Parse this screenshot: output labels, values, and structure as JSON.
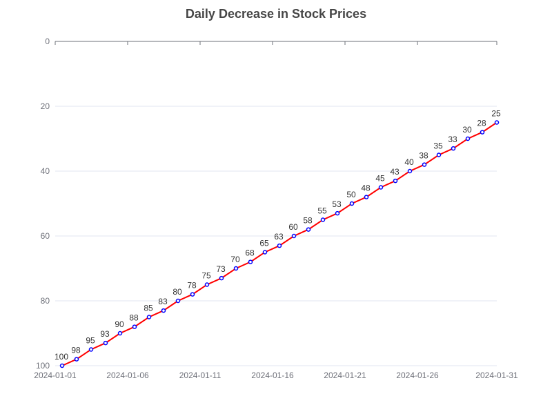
{
  "chart_data": {
    "type": "line",
    "title": "Daily Decrease in Stock Prices",
    "xlabel": "",
    "ylabel": "",
    "y_inverted": true,
    "ylim": [
      0,
      100
    ],
    "y_ticks": [
      0,
      20,
      40,
      60,
      80,
      100
    ],
    "x_tick_labels": [
      "2024-01-01",
      "2024-01-06",
      "2024-01-11",
      "2024-01-16",
      "2024-01-21",
      "2024-01-26",
      "2024-01-31"
    ],
    "grid": true,
    "colors": {
      "line": "#ff0000",
      "marker_stroke": "#0000ff",
      "marker_fill": "#ffffff",
      "grid": "#e0e6f1",
      "axis": "#6e7079"
    },
    "x": [
      "2024-01-01",
      "2024-01-02",
      "2024-01-03",
      "2024-01-04",
      "2024-01-05",
      "2024-01-06",
      "2024-01-07",
      "2024-01-08",
      "2024-01-09",
      "2024-01-10",
      "2024-01-11",
      "2024-01-12",
      "2024-01-13",
      "2024-01-14",
      "2024-01-15",
      "2024-01-16",
      "2024-01-17",
      "2024-01-18",
      "2024-01-19",
      "2024-01-20",
      "2024-01-21",
      "2024-01-22",
      "2024-01-23",
      "2024-01-24",
      "2024-01-25",
      "2024-01-26",
      "2024-01-27",
      "2024-01-28",
      "2024-01-29",
      "2024-01-30",
      "2024-01-31"
    ],
    "series": [
      {
        "values": [
          100,
          98,
          95,
          93,
          90,
          88,
          85,
          83,
          80,
          78,
          75,
          73,
          70,
          68,
          65,
          63,
          60,
          58,
          55,
          53,
          50,
          48,
          45,
          43,
          40,
          38,
          35,
          33,
          30,
          28,
          25
        ]
      }
    ]
  }
}
